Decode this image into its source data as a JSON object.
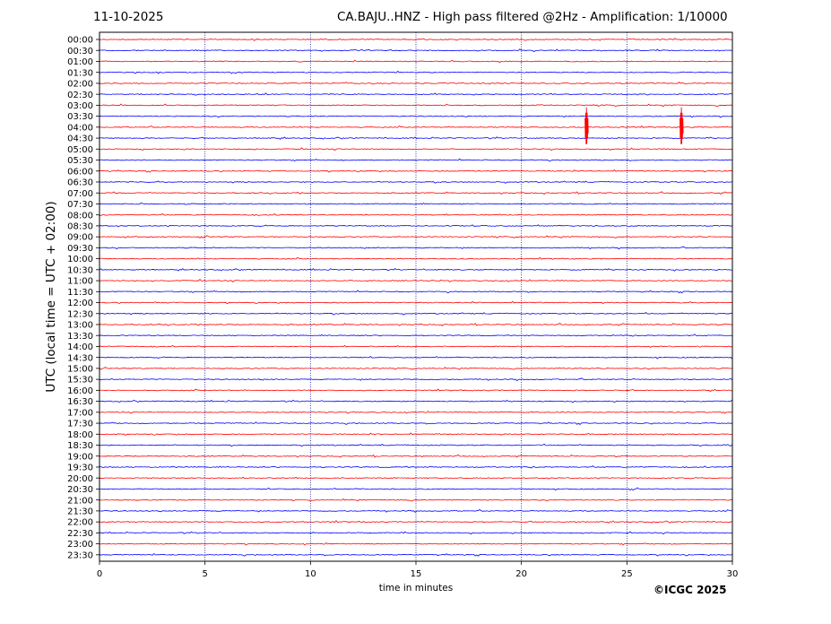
{
  "header": {
    "date": "11-10-2025",
    "title": "CA.BAJU..HNZ - High pass filtered @2Hz - Amplification: 1/10000"
  },
  "footer": {
    "copyright": "©ICGC 2025"
  },
  "colors": {
    "series_a": "#ff0000",
    "series_b": "#0000ff",
    "grid": "#00008b",
    "axis": "#000000"
  },
  "chart_data": {
    "type": "line",
    "chart_kind": "helicorder",
    "xlabel": "time in minutes",
    "ylabel": "UTC (local time = UTC + 02:00)",
    "xlim": [
      0,
      30
    ],
    "xticks": [
      0,
      5,
      10,
      15,
      20,
      25,
      30
    ],
    "vertical_gridlines_at": [
      5,
      10,
      15,
      20,
      25
    ],
    "grid": "dotted vertical",
    "trace_colors_alternate": [
      "red",
      "blue"
    ],
    "rows": [
      "00:00",
      "00:30",
      "01:00",
      "01:30",
      "02:00",
      "02:30",
      "03:00",
      "03:30",
      "04:00",
      "04:30",
      "05:00",
      "05:30",
      "06:00",
      "06:30",
      "07:00",
      "07:30",
      "08:00",
      "08:30",
      "09:00",
      "09:30",
      "10:00",
      "10:30",
      "11:00",
      "11:30",
      "12:00",
      "12:30",
      "13:00",
      "13:30",
      "14:00",
      "14:30",
      "15:00",
      "15:30",
      "16:00",
      "16:30",
      "17:00",
      "17:30",
      "18:00",
      "18:30",
      "19:00",
      "19:30",
      "20:00",
      "20:30",
      "21:00",
      "21:30",
      "22:00",
      "22:30",
      "23:00",
      "23:30"
    ],
    "events": [
      {
        "row": "04:00",
        "minute": 23.1,
        "amplitude": "large"
      },
      {
        "row": "04:00",
        "minute": 27.6,
        "amplitude": "large"
      }
    ]
  }
}
